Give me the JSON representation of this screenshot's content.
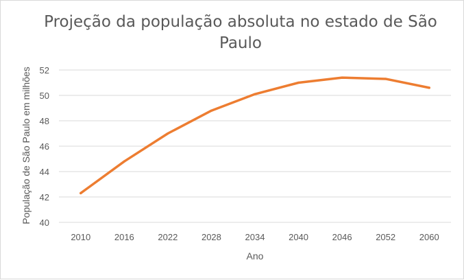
{
  "chart_data": {
    "type": "line",
    "title": "Projeção da população absoluta no estado de São Paulo",
    "xlabel": "Ano",
    "ylabel": "População de São Paulo em milhões",
    "categories": [
      "2010",
      "2016",
      "2022",
      "2028",
      "2034",
      "2040",
      "2046",
      "2052",
      "2060"
    ],
    "series": [
      {
        "values": [
          42.3,
          44.8,
          47.0,
          48.8,
          50.1,
          51.0,
          51.4,
          51.3,
          50.6
        ],
        "color": "#ed7d31"
      }
    ],
    "ylim": [
      40,
      52
    ],
    "yticks": [
      "40",
      "42",
      "44",
      "46",
      "48",
      "50",
      "52"
    ],
    "grid": true,
    "legend": "none"
  }
}
